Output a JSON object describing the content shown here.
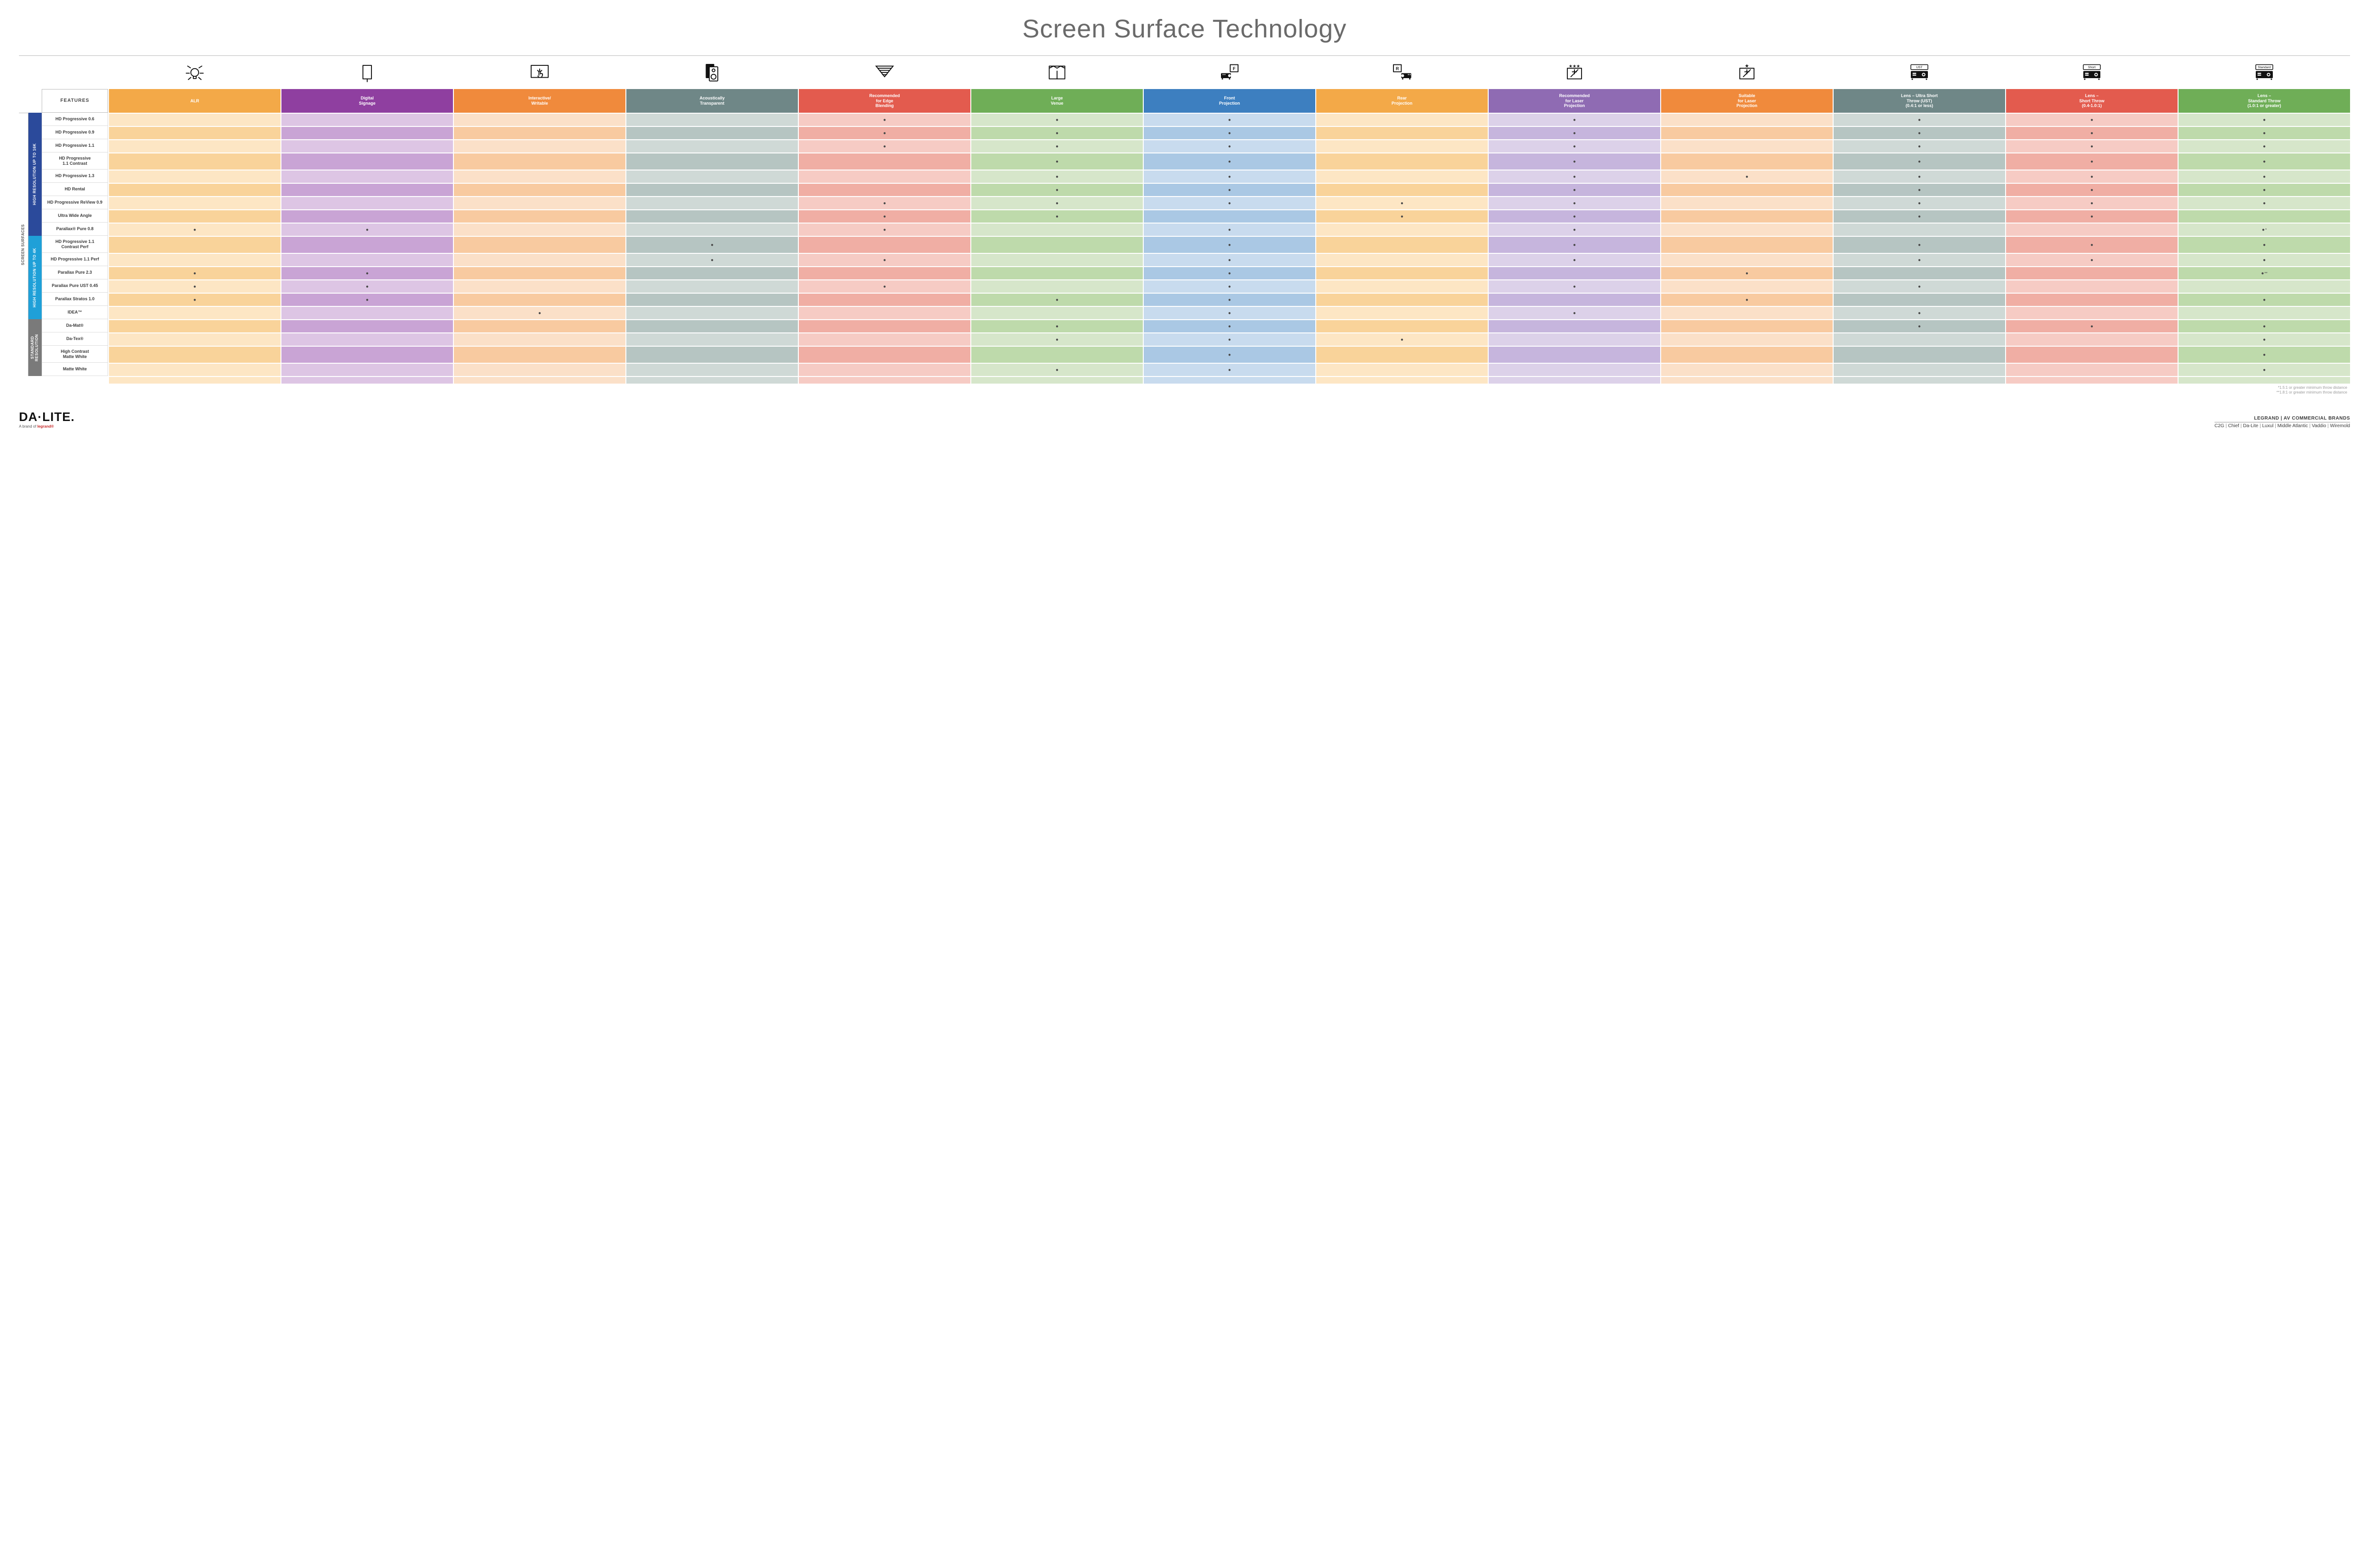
{
  "title": "Screen Surface Technology",
  "colors": {
    "columns": [
      {
        "key": "alr",
        "header_bg": "#f3a948",
        "light": "#fde6c4",
        "dark": "#f9d39a"
      },
      {
        "key": "digital",
        "header_bg": "#8f3fa0",
        "light": "#ddc5e4",
        "dark": "#c9a4d5"
      },
      {
        "key": "interactive",
        "header_bg": "#f08a3c",
        "light": "#fbe0c8",
        "dark": "#f8caa0"
      },
      {
        "key": "acoustic",
        "header_bg": "#6f8787",
        "light": "#cfd9d6",
        "dark": "#b6c5c2"
      },
      {
        "key": "edge",
        "header_bg": "#e35b4e",
        "light": "#f6cbc4",
        "dark": "#f0aea4"
      },
      {
        "key": "large",
        "header_bg": "#6fae57",
        "light": "#d6e6ca",
        "dark": "#bedaab"
      },
      {
        "key": "front",
        "header_bg": "#3d7fc0",
        "light": "#c8dbee",
        "dark": "#aac8e4"
      },
      {
        "key": "rear",
        "header_bg": "#f3a948",
        "light": "#fde6c4",
        "dark": "#f9d39a"
      },
      {
        "key": "reclaser",
        "header_bg": "#8f6bb3",
        "light": "#dcd1e9",
        "dark": "#c6b5dd"
      },
      {
        "key": "suitlaser",
        "header_bg": "#f08a3c",
        "light": "#fbe0c8",
        "dark": "#f8caa0"
      },
      {
        "key": "ust",
        "header_bg": "#6f8787",
        "light": "#cfd9d6",
        "dark": "#b6c5c2"
      },
      {
        "key": "short",
        "header_bg": "#e35b4e",
        "light": "#f6cbc4",
        "dark": "#f0aea4"
      },
      {
        "key": "standard",
        "header_bg": "#6fae57",
        "light": "#d6e6ca",
        "dark": "#bedaab"
      }
    ],
    "group_bg": {
      "g16k": "#2b4a9b",
      "g4k": "#1fa0d8",
      "gstd": "#7a7a7a"
    }
  },
  "columns": [
    {
      "key": "alr",
      "label": "ALR"
    },
    {
      "key": "digital",
      "label": "Digital\nSignage"
    },
    {
      "key": "interactive",
      "label": "Interactive/\nWritable"
    },
    {
      "key": "acoustic",
      "label": "Acoustically\nTransparent"
    },
    {
      "key": "edge",
      "label": "Recommended\nfor Edge\nBlending"
    },
    {
      "key": "large",
      "label": "Large\nVenue"
    },
    {
      "key": "front",
      "label": "Front\nProjection"
    },
    {
      "key": "rear",
      "label": "Rear\nProjection"
    },
    {
      "key": "reclaser",
      "label": "Recommended\nfor Laser\nProjection"
    },
    {
      "key": "suitlaser",
      "label": "Suitable\nfor Laser\nProjection"
    },
    {
      "key": "ust",
      "label": "Lens – Ultra Short\nThrow (UST)\n(0.4:1 or less)"
    },
    {
      "key": "short",
      "label": "Lens –\nShort Throw\n(0.4-1.0:1)"
    },
    {
      "key": "standard",
      "label": "Lens –\nStandard Throw\n(1.0:1 or greater)"
    }
  ],
  "features_header": "FEATURES",
  "outer_label": "SCREEN SURFACES",
  "groups": [
    {
      "key": "g16k",
      "label": "HIGH RESOLUTION UP TO 16K",
      "rows": [
        {
          "label": "HD Progressive 0.6",
          "dots": {
            "edge": "•",
            "large": "•",
            "front": "•",
            "reclaser": "•",
            "ust": "•",
            "short": "•",
            "standard": "•"
          }
        },
        {
          "label": "HD Progressive 0.9",
          "dots": {
            "edge": "•",
            "large": "•",
            "front": "•",
            "reclaser": "•",
            "ust": "•",
            "short": "•",
            "standard": "•"
          }
        },
        {
          "label": "HD Progressive 1.1",
          "dots": {
            "edge": "•",
            "large": "•",
            "front": "•",
            "reclaser": "•",
            "ust": "•",
            "short": "•",
            "standard": "•"
          }
        },
        {
          "label": "HD Progressive\n1.1 Contrast",
          "tall": true,
          "dots": {
            "large": "•",
            "front": "•",
            "reclaser": "•",
            "ust": "•",
            "short": "•",
            "standard": "•"
          }
        },
        {
          "label": "HD Progressive 1.3",
          "dots": {
            "large": "•",
            "front": "•",
            "reclaser": "•",
            "suitlaser": "•",
            "ust": "•",
            "short": "•",
            "standard": "•"
          }
        },
        {
          "label": "HD Rental",
          "dots": {
            "large": "•",
            "front": "•",
            "reclaser": "•",
            "ust": "•",
            "short": "•",
            "standard": "•"
          }
        },
        {
          "label": "HD Progressive ReView 0.9",
          "dots": {
            "edge": "•",
            "large": "•",
            "front": "•",
            "rear": "•",
            "reclaser": "•",
            "ust": "•",
            "short": "•",
            "standard": "•"
          }
        },
        {
          "label": "Ultra Wide Angle",
          "dots": {
            "edge": "•",
            "large": "•",
            "rear": "•",
            "reclaser": "•",
            "ust": "•",
            "short": "•"
          }
        },
        {
          "label": "Parallax® Pure 0.8",
          "dots": {
            "alr": "•",
            "digital": "•",
            "edge": "•",
            "front": "•",
            "reclaser": "•",
            "standard": "•*"
          }
        }
      ]
    },
    {
      "key": "g4k",
      "label": "HIGH RESOLUTION UP TO 4K",
      "rows": [
        {
          "label": "HD Progressive 1.1\nContrast Perf",
          "tall": true,
          "dots": {
            "acoustic": "•",
            "front": "•",
            "reclaser": "•",
            "ust": "•",
            "short": "•",
            "standard": "•"
          }
        },
        {
          "label": "HD Progressive 1.1 Perf",
          "dots": {
            "acoustic": "•",
            "edge": "•",
            "front": "•",
            "reclaser": "•",
            "ust": "•",
            "short": "•",
            "standard": "•"
          }
        },
        {
          "label": "Parallax Pure 2.3",
          "dots": {
            "alr": "•",
            "digital": "•",
            "front": "•",
            "suitlaser": "•",
            "standard": "•**"
          }
        },
        {
          "label": "Parallax Pure UST 0.45",
          "dots": {
            "alr": "•",
            "digital": "•",
            "edge": "•",
            "front": "•",
            "reclaser": "•",
            "ust": "•"
          }
        },
        {
          "label": "Parallax Stratos 1.0",
          "dots": {
            "alr": "•",
            "digital": "•",
            "large": "•",
            "front": "•",
            "suitlaser": "•",
            "standard": "•"
          }
        },
        {
          "label": "IDEA™",
          "dots": {
            "interactive": "•",
            "front": "•",
            "reclaser": "•",
            "ust": "•"
          }
        }
      ]
    },
    {
      "key": "gstd",
      "label": "STANDARD\nRESOLUTION",
      "rows": [
        {
          "label": "Da-Mat®",
          "dots": {
            "large": "•",
            "front": "•",
            "ust": "•",
            "short": "•",
            "standard": "•"
          }
        },
        {
          "label": "Da-Tex®",
          "dots": {
            "large": "•",
            "front": "•",
            "rear": "•",
            "standard": "•"
          }
        },
        {
          "label": "High Contrast\nMatte White",
          "tall": true,
          "dots": {
            "front": "•",
            "standard": "•"
          }
        },
        {
          "label": "Matte White",
          "dots": {
            "large": "•",
            "front": "•",
            "standard": "•"
          }
        }
      ]
    }
  ],
  "footnotes": [
    "*1.5:1 or greater minimum throw distance",
    "**1.8:1 or greater minimum throw distance"
  ],
  "footer": {
    "logo_main": "DA·LITE.",
    "logo_sub_prefix": "A brand of ",
    "logo_sub_brand": "legrand®",
    "brands_header": "LEGRAND | AV COMMERCIAL BRANDS",
    "brands": [
      "C2G",
      "Chief",
      "Da-Lite",
      "Luxul",
      "Middle Atlantic",
      "Vaddio",
      "Wiremold"
    ]
  },
  "icons": {
    "alr": "bulb",
    "digital": "signage",
    "interactive": "touch",
    "acoustic": "speaker",
    "edge": "blend",
    "large": "venue",
    "front": "front",
    "rear": "rear",
    "reclaser": "laser3",
    "suitlaser": "laser1",
    "ust": "proj-ust",
    "short": "proj-short",
    "standard": "proj-std"
  }
}
